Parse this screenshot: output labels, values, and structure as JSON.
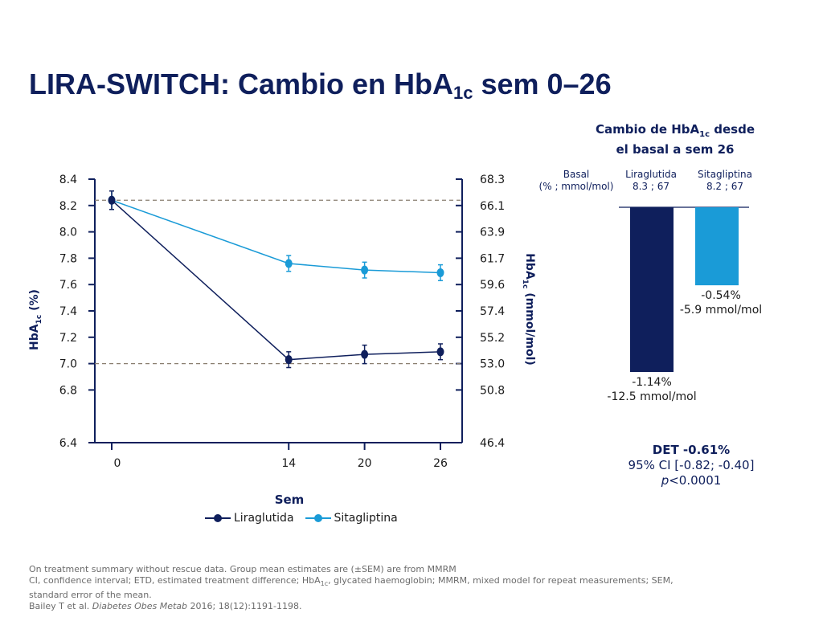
{
  "title_main": "LIRA-SWITCH: Cambio en HbA",
  "title_sub": "1c",
  "title_end": " sem 0–26",
  "chart_data": [
    {
      "type": "line",
      "xlabel": "Sem",
      "ylabel_left": "HbA1c (%)",
      "ylabel_right": "HbA1c (mmol/mol)",
      "x": [
        0,
        14,
        20,
        26
      ],
      "x_ticks": [
        "0",
        "14",
        "20",
        "26"
      ],
      "ylim": [
        6.4,
        8.4
      ],
      "y_ticks_left": [
        "8.4",
        "8.2",
        "8.0",
        "7.8",
        "7.6",
        "7.4",
        "7.2",
        "7.0",
        "6.8",
        "6.4"
      ],
      "y_tick_values_left": [
        8.4,
        8.2,
        8.0,
        7.8,
        7.6,
        7.4,
        7.2,
        7.0,
        6.8,
        6.4
      ],
      "y_ticks_right": [
        "68.3",
        "66.1",
        "63.9",
        "61.7",
        "59.6",
        "57.4",
        "55.2",
        "53.0",
        "50.8",
        "46.4"
      ],
      "reference_lines": [
        8.24,
        7.0
      ],
      "series": [
        {
          "name": "Liraglutida",
          "color": "#0f1f5c",
          "values": [
            8.24,
            7.03,
            7.07,
            7.09
          ],
          "sem": [
            0.07,
            0.06,
            0.07,
            0.06
          ]
        },
        {
          "name": "Sitagliptina",
          "color": "#1a9bd7",
          "values": [
            8.24,
            7.76,
            7.71,
            7.69
          ],
          "sem": [
            0.07,
            0.06,
            0.06,
            0.06
          ]
        }
      ],
      "legend": "bottom"
    },
    {
      "type": "bar",
      "title": "Cambio de HbA1c desde el basal a sem 26",
      "categories": [
        "Liraglutida",
        "Sitagliptina"
      ],
      "values": [
        -1.14,
        -0.54
      ],
      "values_mmol": [
        -12.5,
        -5.9
      ],
      "colors": [
        "#0f1f5c",
        "#1a9bd7"
      ],
      "value_labels_pct": [
        "-1.14%",
        "-0.54%"
      ],
      "value_labels_mmol": [
        "-12.5 mmol/mol",
        "-5.9 mmol/mol"
      ],
      "baseline_values": [
        "8.3 ; 67",
        "8.2 ; 67"
      ],
      "basal_label": "Basal",
      "basal_units": "(% ; mmol/mol)"
    }
  ],
  "stats": {
    "det": "DET -0.61%",
    "ci": "95% CI [-0.82; -0.40]",
    "p_italic": "p",
    "p_rest": "<0.0001"
  },
  "bar_heading_1": "Cambio de HbA",
  "bar_heading_sub": "1c",
  "bar_heading_2": " desde",
  "bar_heading_3": "el basal a sem 26",
  "footnote": {
    "line1": "On treatment summary without rescue data. Group mean estimates are (±SEM) are from MMRM",
    "line2_a": "CI, confidence interval; ETD, estimated treatment difference; HbA",
    "line2_sub": "1c",
    "line2_b": ", glycated haemoglobin; MMRM, mixed model for repeat measurements; SEM,",
    "line3": "standard error of the mean.",
    "ref_a": "Bailey T et al. ",
    "ref_journal": "Diabetes Obes Metab",
    "ref_b": " 2016; 18(12):1191-1198."
  }
}
